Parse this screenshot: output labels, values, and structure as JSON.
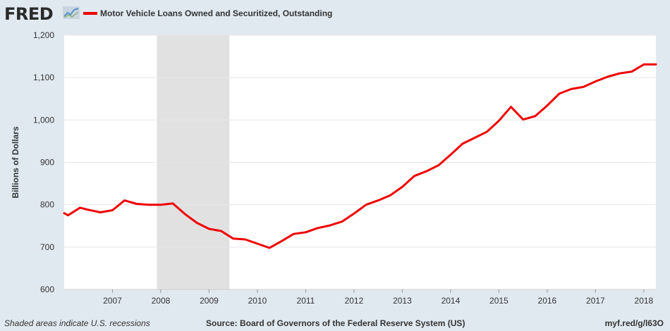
{
  "logo": "FRED",
  "legend": {
    "label": "Motor Vehicle Loans Owned and Securitized, Outstanding",
    "color": "#ee0000"
  },
  "footer": {
    "notes": "Shaded areas indicate U.S. recessions",
    "source": "Source: Board of Governors of the Federal Reserve System (US)",
    "link": "myf.red/g/l63O"
  },
  "chart_data": {
    "type": "line",
    "ylabel": "Billions of Dollars",
    "xlabel": "",
    "ylim": [
      600,
      1200
    ],
    "yticks": [
      600,
      700,
      800,
      900,
      1000,
      1100,
      1200
    ],
    "ytick_labels": [
      "600",
      "700",
      "800",
      "900",
      "1,000",
      "1,100",
      "1,200"
    ],
    "xlim": [
      2006.0,
      2018.25
    ],
    "xticks": [
      2007,
      2008,
      2009,
      2010,
      2011,
      2012,
      2013,
      2014,
      2015,
      2016,
      2017,
      2018
    ],
    "xtick_labels": [
      "2007",
      "2008",
      "2009",
      "2010",
      "2011",
      "2012",
      "2013",
      "2014",
      "2015",
      "2016",
      "2017",
      "2018"
    ],
    "grid": "horizontal",
    "recessions": [
      [
        2007.92,
        2009.42
      ]
    ],
    "recession_color": "#e1e1e1",
    "series": [
      {
        "name": "Motor Vehicle Loans Owned and Securitized, Outstanding",
        "color": "#ee0000",
        "x": [
          2006.0,
          2006.08,
          2006.33,
          2006.5,
          2006.75,
          2007.0,
          2007.25,
          2007.5,
          2007.75,
          2008.0,
          2008.25,
          2008.5,
          2008.75,
          2009.0,
          2009.25,
          2009.5,
          2009.75,
          2010.0,
          2010.25,
          2010.5,
          2010.75,
          2011.0,
          2011.25,
          2011.5,
          2011.75,
          2012.0,
          2012.25,
          2012.5,
          2012.75,
          2013.0,
          2013.25,
          2013.5,
          2013.75,
          2014.0,
          2014.25,
          2014.5,
          2014.75,
          2015.0,
          2015.25,
          2015.5,
          2015.75,
          2016.0,
          2016.25,
          2016.5,
          2016.75,
          2017.0,
          2017.25,
          2017.5,
          2017.75,
          2018.0,
          2018.25
        ],
        "values": [
          780,
          775,
          793,
          788,
          782,
          787,
          810,
          802,
          800,
          800,
          803,
          778,
          757,
          743,
          738,
          720,
          718,
          708,
          698,
          714,
          731,
          735,
          745,
          751,
          760,
          779,
          800,
          810,
          822,
          842,
          868,
          879,
          893,
          918,
          944,
          958,
          972,
          998,
          1031,
          1001,
          1009,
          1034,
          1062,
          1073,
          1078,
          1091,
          1102,
          1110,
          1114,
          1131,
          1131
        ]
      }
    ]
  }
}
